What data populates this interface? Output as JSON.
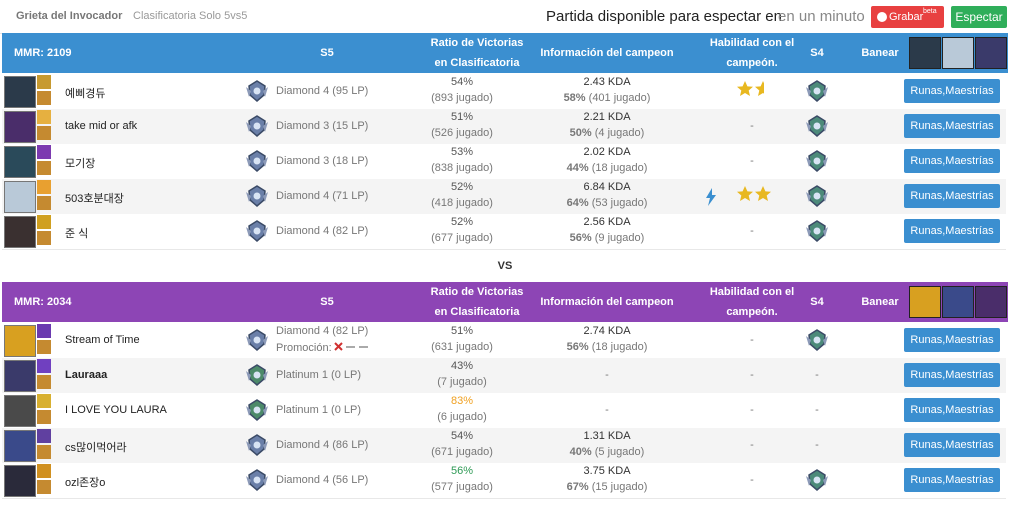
{
  "header": {
    "map": "Grieta del Invocador",
    "queue": "Clasificatoria Solo 5vs5",
    "status": "Partida disponible para espectar en",
    "time": "en un minuto",
    "record": "Grabar",
    "beta": "beta",
    "spectate": "Espectar"
  },
  "versus": "VS",
  "teams": [
    {
      "mmr": "MMR: 2109",
      "color": "#3b8fd0",
      "columns": {
        "s5": "S5",
        "ratio": [
          "Ratio de Victorias",
          "en Clasificatoria"
        ],
        "info": "Información del campeon",
        "skill": [
          "Habilidad con el",
          "campeón."
        ],
        "s4": "S4",
        "ban": "Banear"
      },
      "players": [
        {
          "name": "예삐경듀",
          "tier": "Diamond 4 (95 LP)",
          "winrate": "54%",
          "games": "(893 jugado)",
          "kda": "2.43 KDA",
          "champ_wr": "58%",
          "champ_games": "(401 jugado)",
          "stars": 1.5,
          "button": "Runas,Maestrías"
        },
        {
          "name": "take mid or afk",
          "tier": "Diamond 3 (15 LP)",
          "winrate": "51%",
          "games": "(526 jugado)",
          "kda": "2.21 KDA",
          "champ_wr": "50%",
          "champ_games": "(4 jugado)",
          "skill": "-",
          "button": "Runas,Maestrías"
        },
        {
          "name": "모기장",
          "tier": "Diamond 3 (18 LP)",
          "winrate": "53%",
          "games": "(838 jugado)",
          "kda": "2.02 KDA",
          "champ_wr": "44%",
          "champ_games": "(18 jugado)",
          "skill": "-",
          "button": "Runas,Maestrías"
        },
        {
          "name": "503호분대장",
          "tier": "Diamond 4 (71 LP)",
          "winrate": "52%",
          "games": "(418 jugado)",
          "kda": "6.84 KDA",
          "champ_wr": "64%",
          "champ_games": "(53 jugado)",
          "stars": 2,
          "hot_streak": true,
          "button": "Runas,Maestrías"
        },
        {
          "name": "준 식",
          "tier": "Diamond 4 (82 LP)",
          "winrate": "52%",
          "games": "(677 jugado)",
          "kda": "2.56 KDA",
          "champ_wr": "56%",
          "champ_games": "(9 jugado)",
          "skill": "-",
          "button": "Runas,Maestrías"
        }
      ]
    },
    {
      "mmr": "MMR: 2034",
      "color": "#8d45b5",
      "columns": {
        "s5": "S5",
        "ratio": [
          "Ratio de Victorias",
          "en Clasificatoria"
        ],
        "info": "Información del campeon",
        "skill": [
          "Habilidad con el",
          "campeón."
        ],
        "s4": "S4",
        "ban": "Banear"
      },
      "players": [
        {
          "name": "Stream of Time",
          "tier": "Diamond 4 (82 LP)",
          "promo": "Promoción:",
          "winrate": "51%",
          "games": "(631 jugado)",
          "kda": "2.74 KDA",
          "champ_wr": "56%",
          "champ_games": "(18 jugado)",
          "skill": "-",
          "button": "Runas,Maestrías"
        },
        {
          "name": "Lauraaa",
          "bold": true,
          "tier": "Platinum 1 (0 LP)",
          "winrate": "43%",
          "games": "(7 jugado)",
          "info": "-",
          "skill": "-",
          "s4": "-",
          "button": "Runas,Maestrías"
        },
        {
          "name": "I LOVE YOU LAURA",
          "tier": "Platinum 1 (0 LP)",
          "winrate": "83%",
          "winrate_color": "#f0a020",
          "games": "(6 jugado)",
          "info": "-",
          "skill": "-",
          "s4": "-",
          "button": "Runas,Maestrías"
        },
        {
          "name": "cs많이먹어라",
          "tier": "Diamond 4 (86 LP)",
          "winrate": "54%",
          "games": "(671 jugado)",
          "kda": "1.31 KDA",
          "champ_wr": "40%",
          "champ_games": "(5 jugado)",
          "skill": "-",
          "s4": "-",
          "button": "Runas,Maestrías"
        },
        {
          "name": "ozl존장o",
          "tier": "Diamond 4 (56 LP)",
          "winrate": "56%",
          "winrate_color": "#2e9a55",
          "games": "(577 jugado)",
          "kda": "3.75 KDA",
          "champ_wr": "67%",
          "champ_games": "(15 jugado)",
          "skill": "-",
          "button": "Runas,Maestrías"
        }
      ]
    }
  ]
}
